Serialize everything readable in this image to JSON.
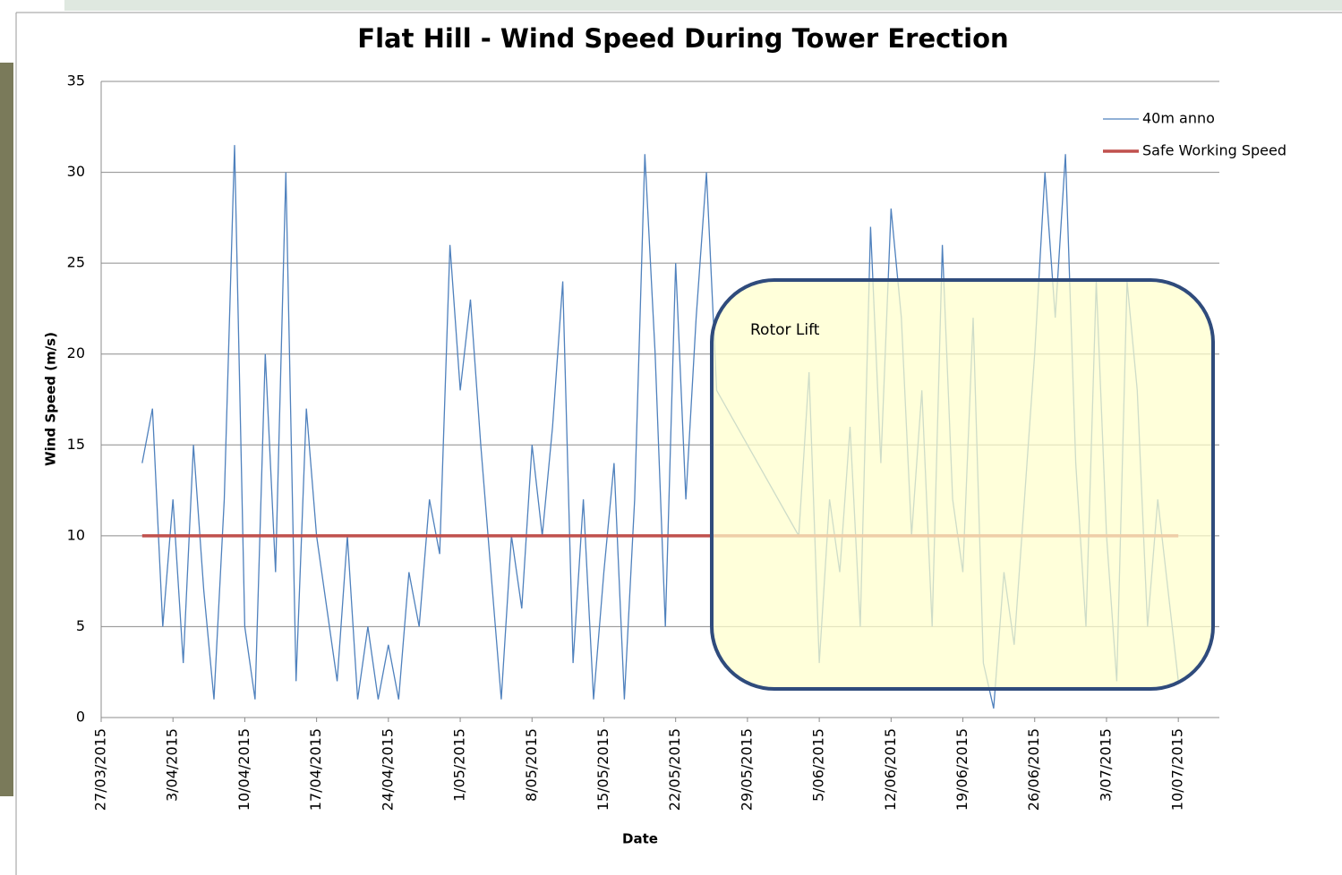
{
  "chart_data": {
    "type": "line",
    "title": "Flat Hill - Wind Speed During Tower Erection",
    "x_label": "Date",
    "y_label": "Wind Speed (m/s)",
    "xlim": [
      "27/03/2015",
      "14/07/2015"
    ],
    "xticks": [
      "27/03/2015",
      "3/04/2015",
      "10/04/2015",
      "17/04/2015",
      "24/04/2015",
      "1/05/2015",
      "8/05/2015",
      "15/05/2015",
      "22/05/2015",
      "29/05/2015",
      "5/06/2015",
      "12/06/2015",
      "19/06/2015",
      "26/06/2015",
      "3/07/2015",
      "10/07/2015"
    ],
    "ylim": [
      0,
      35
    ],
    "yticks": [
      0,
      5,
      10,
      15,
      20,
      25,
      30,
      35
    ],
    "grid": true,
    "legend_position": "top-right",
    "annotations": [
      {
        "text": "Rotor Lift"
      }
    ],
    "series": [
      {
        "name": "40m anno",
        "color": "#4f81bd",
        "x": [
          "31/03/2015",
          "1/04/2015",
          "2/04/2015",
          "3/04/2015",
          "4/04/2015",
          "5/04/2015",
          "6/04/2015",
          "7/04/2015",
          "8/04/2015",
          "9/04/2015",
          "10/04/2015",
          "11/04/2015",
          "12/04/2015",
          "13/04/2015",
          "14/04/2015",
          "15/04/2015",
          "16/04/2015",
          "17/04/2015",
          "18/04/2015",
          "19/04/2015",
          "20/04/2015",
          "21/04/2015",
          "22/04/2015",
          "23/04/2015",
          "24/04/2015",
          "25/04/2015",
          "26/04/2015",
          "27/04/2015",
          "28/04/2015",
          "29/04/2015",
          "30/04/2015",
          "1/05/2015",
          "2/05/2015",
          "3/05/2015",
          "4/05/2015",
          "5/05/2015",
          "6/05/2015",
          "7/05/2015",
          "8/05/2015",
          "9/05/2015",
          "10/05/2015",
          "11/05/2015",
          "12/05/2015",
          "13/05/2015",
          "14/05/2015",
          "15/05/2015",
          "16/05/2015",
          "17/05/2015",
          "18/05/2015",
          "19/05/2015",
          "20/05/2015",
          "21/05/2015",
          "22/05/2015",
          "23/05/2015",
          "24/05/2015",
          "25/05/2015",
          "26/05/2015",
          "3/06/2015",
          "4/06/2015",
          "5/06/2015",
          "6/06/2015",
          "7/06/2015",
          "8/06/2015",
          "9/06/2015",
          "10/06/2015",
          "11/06/2015",
          "12/06/2015",
          "13/06/2015",
          "14/06/2015",
          "15/06/2015",
          "16/06/2015",
          "17/06/2015",
          "18/06/2015",
          "19/06/2015",
          "20/06/2015",
          "21/06/2015",
          "22/06/2015",
          "23/06/2015",
          "24/06/2015",
          "25/06/2015",
          "26/06/2015",
          "27/06/2015",
          "28/06/2015",
          "29/06/2015",
          "30/06/2015",
          "1/07/2015",
          "2/07/2015",
          "3/07/2015",
          "4/07/2015",
          "5/07/2015",
          "6/07/2015",
          "7/07/2015",
          "8/07/2015",
          "9/07/2015",
          "10/07/2015"
        ],
        "values": [
          14,
          17,
          5,
          12,
          3,
          15,
          7,
          1,
          12,
          31.5,
          5,
          1,
          20,
          8,
          30,
          2,
          17,
          10,
          6,
          2,
          10,
          1,
          5,
          1,
          4,
          1,
          8,
          5,
          12,
          9,
          26,
          18,
          23,
          15,
          8,
          1,
          10,
          6,
          15,
          10,
          16,
          24,
          3,
          12,
          1,
          8,
          14,
          1,
          12,
          31,
          20,
          5,
          25,
          12,
          22,
          30,
          18,
          10,
          19,
          3,
          12,
          8,
          16,
          5,
          27,
          14,
          28,
          22,
          10,
          18,
          5,
          26,
          12,
          8,
          22,
          3,
          0.5,
          8,
          4,
          12,
          20,
          30,
          22,
          31,
          14,
          5,
          24,
          10,
          2,
          24,
          18,
          5,
          12,
          7,
          2
        ]
      },
      {
        "name": "Safe Working Speed",
        "color": "#c0504d",
        "x": [
          "31/03/2015",
          "10/07/2015"
        ],
        "values": [
          10,
          10
        ]
      }
    ]
  }
}
